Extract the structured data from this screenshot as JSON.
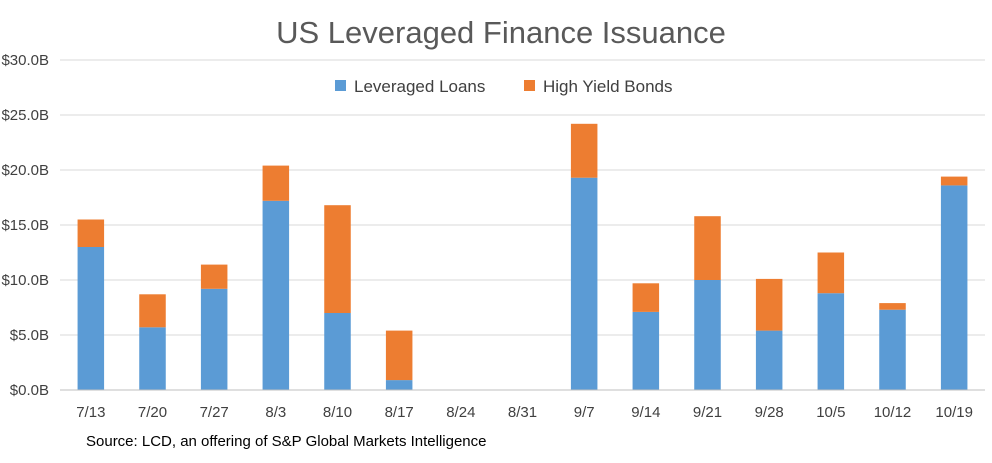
{
  "chart_data": {
    "type": "bar",
    "stacked": true,
    "title": "US Leveraged Finance Issuance",
    "categories": [
      "7/13",
      "7/20",
      "7/27",
      "8/3",
      "8/10",
      "8/17",
      "8/24",
      "8/31",
      "9/7",
      "9/14",
      "9/21",
      "9/28",
      "10/5",
      "10/12",
      "10/19"
    ],
    "series": [
      {
        "name": "Leveraged Loans",
        "color": "#5b9bd5",
        "values": [
          13.0,
          5.7,
          9.2,
          17.2,
          7.0,
          0.9,
          0,
          0,
          19.3,
          7.1,
          10.0,
          5.4,
          8.8,
          7.3,
          18.6
        ]
      },
      {
        "name": "High Yield Bonds",
        "color": "#ed7d31",
        "values": [
          2.5,
          3.0,
          2.2,
          3.2,
          9.8,
          4.5,
          0,
          0,
          4.9,
          2.6,
          5.8,
          4.7,
          3.7,
          0.6,
          0.8
        ]
      }
    ],
    "yticks": [
      "$0.0B",
      "$5.0B",
      "$10.0B",
      "$15.0B",
      "$20.0B",
      "$25.0B",
      "$30.0B"
    ],
    "ylim": [
      0,
      30
    ],
    "ytick_step": 5,
    "grid": true,
    "legend_position": "top"
  },
  "source_note": "Source: LCD, an offering of S&P Global Markets Intelligence"
}
